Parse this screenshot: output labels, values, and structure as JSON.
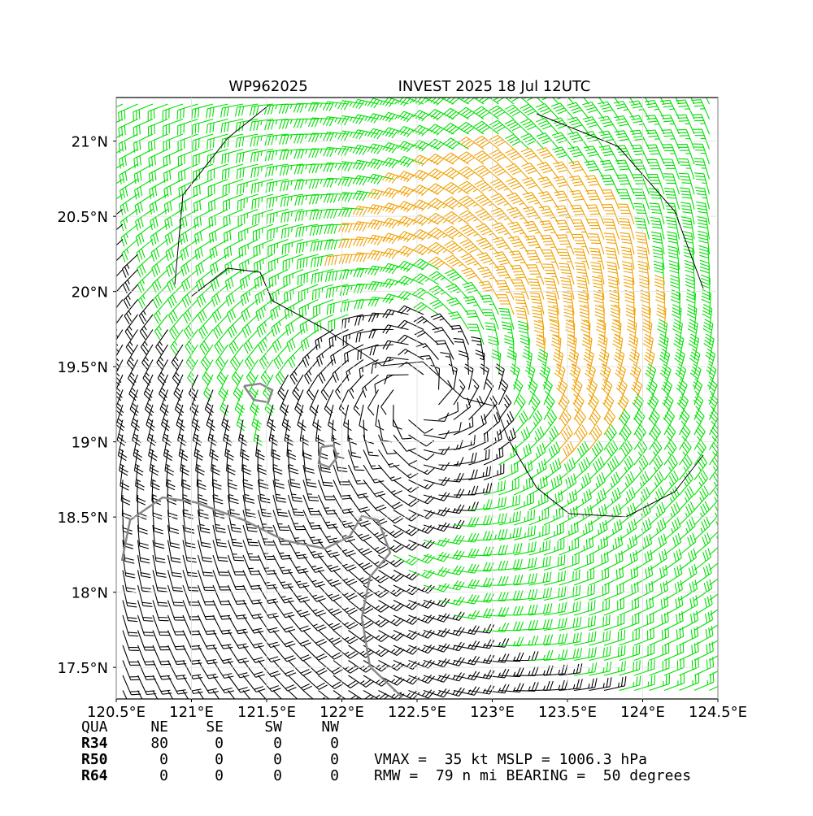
{
  "map": {
    "title_left": "WP962025",
    "title_right": "INVEST 2025 18 Jul 12UTC",
    "xlim": [
      120.5,
      124.5
    ],
    "ylim": [
      17.29,
      21.29
    ],
    "xticks": [
      {
        "value": 120.5,
        "label": "120.5°E"
      },
      {
        "value": 121,
        "label": "121°E"
      },
      {
        "value": 121.5,
        "label": "121.5°E"
      },
      {
        "value": 122,
        "label": "122°E"
      },
      {
        "value": 122.5,
        "label": "122.5°E"
      },
      {
        "value": 123,
        "label": "123°E"
      },
      {
        "value": 123.5,
        "label": "123.5°E"
      },
      {
        "value": 124,
        "label": "124°E"
      },
      {
        "value": 124.5,
        "label": "124.5°E"
      }
    ],
    "yticks": [
      {
        "value": 17.5,
        "label": "17.5°N"
      },
      {
        "value": 18,
        "label": "18°N"
      },
      {
        "value": 18.5,
        "label": "18.5°N"
      },
      {
        "value": 19,
        "label": "19°N"
      },
      {
        "value": 19.5,
        "label": "19.5°N"
      },
      {
        "value": 20,
        "label": "20°N"
      },
      {
        "value": 20.5,
        "label": "20.5°N"
      },
      {
        "value": 21,
        "label": "21°N"
      }
    ]
  },
  "table": {
    "header": [
      "QUA",
      "NE",
      "SE",
      "SW",
      "NW"
    ],
    "rows": [
      [
        "R34",
        "80",
        "0",
        "0",
        "0"
      ],
      [
        "R50",
        "0",
        "0",
        "0",
        "0"
      ],
      [
        "R64",
        "0",
        "0",
        "0",
        "0"
      ]
    ]
  },
  "stats": [
    "VMAX =  35 kt MSLP = 1006.3 hPa",
    "RMW =  79 n mi BEARING =  50 degrees"
  ]
}
